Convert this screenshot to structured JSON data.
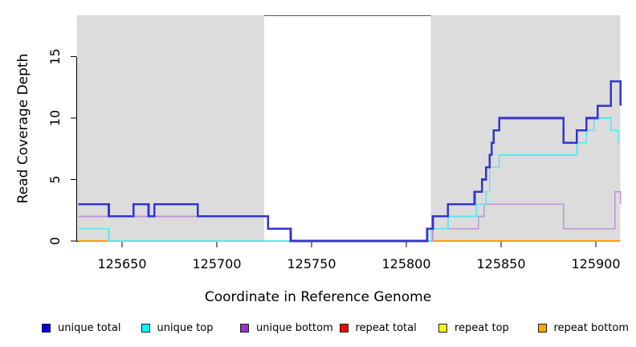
{
  "chart_data": {
    "type": "line",
    "title": "",
    "xlabel": "Coordinate in Reference Genome",
    "ylabel": "Read Coverage Depth",
    "xlim": [
      125626,
      125913
    ],
    "ylim": [
      0,
      18.4
    ],
    "x_ticks": [
      125650,
      125700,
      125750,
      125800,
      125850,
      125900
    ],
    "y_ticks": [
      0,
      5,
      10,
      15
    ],
    "grid": false,
    "legend_position": "bottom",
    "background_color": "#ffffff",
    "shaded_region_color": "#dcdcdc",
    "shaded_regions": [
      {
        "x0": 125626,
        "x1": 125725
      },
      {
        "x0": 125813,
        "x1": 125913
      }
    ],
    "gap_top_border": {
      "x0": 125725,
      "x1": 125813,
      "color": "#555555"
    },
    "zero_overlap_artifact": {
      "color": "#79c47f",
      "x0": 125644,
      "x1": 125739,
      "value": 0
    },
    "series": [
      {
        "name": "unique total",
        "color": "#3434d2",
        "legend_color": "#0000dd",
        "width": 2.6,
        "steps": [
          [
            125627,
            3
          ],
          [
            125643,
            2
          ],
          [
            125656,
            3
          ],
          [
            125664,
            2
          ],
          [
            125667,
            3
          ],
          [
            125690,
            2
          ],
          [
            125727,
            1
          ],
          [
            125739,
            0
          ],
          [
            125811,
            1
          ],
          [
            125814,
            2
          ],
          [
            125822,
            3
          ],
          [
            125836,
            4
          ],
          [
            125840,
            5
          ],
          [
            125842,
            6
          ],
          [
            125844,
            7
          ],
          [
            125845,
            8
          ],
          [
            125846,
            9
          ],
          [
            125849,
            10
          ],
          [
            125883,
            8
          ],
          [
            125890,
            9
          ],
          [
            125895,
            10
          ],
          [
            125901,
            11
          ],
          [
            125908,
            13
          ],
          [
            125913,
            11
          ]
        ],
        "end": 125913
      },
      {
        "name": "unique top",
        "color": "#5ce6ee",
        "legend_color": "#00ffff",
        "width": 1.7,
        "steps": [
          [
            125627,
            1
          ],
          [
            125643,
            0
          ],
          [
            125813,
            1
          ],
          [
            125822,
            2
          ],
          [
            125837,
            3
          ],
          [
            125842,
            4
          ],
          [
            125844,
            6
          ],
          [
            125849,
            7
          ],
          [
            125890,
            8
          ],
          [
            125895,
            9
          ],
          [
            125899,
            10
          ],
          [
            125908,
            9
          ],
          [
            125912,
            8
          ]
        ],
        "end": 125912
      },
      {
        "name": "unique bottom",
        "color": "#c194d8",
        "legend_color": "#9932cc",
        "width": 1.7,
        "steps": [
          [
            125627,
            2
          ],
          [
            125727,
            1
          ],
          [
            125739,
            0
          ],
          [
            125814,
            1
          ],
          [
            125838,
            2
          ],
          [
            125841,
            3
          ],
          [
            125883,
            1
          ],
          [
            125910,
            4
          ],
          [
            125913,
            3
          ]
        ],
        "end": 125913
      },
      {
        "name": "repeat total",
        "color": "#cc0000",
        "legend_color": "#ff0000",
        "width": 1.5,
        "steps": [
          [
            125627,
            0
          ]
        ],
        "end": 125913
      },
      {
        "name": "repeat top",
        "color": "#ffff00",
        "legend_color": "#ffff00",
        "width": 1.5,
        "steps": [
          [
            125627,
            0
          ]
        ],
        "end": 125913
      },
      {
        "name": "repeat bottom",
        "color": "#ff9e00",
        "legend_color": "#ffa500",
        "width": 2,
        "steps": [
          [
            125627,
            0
          ]
        ],
        "end": 125913
      }
    ]
  }
}
